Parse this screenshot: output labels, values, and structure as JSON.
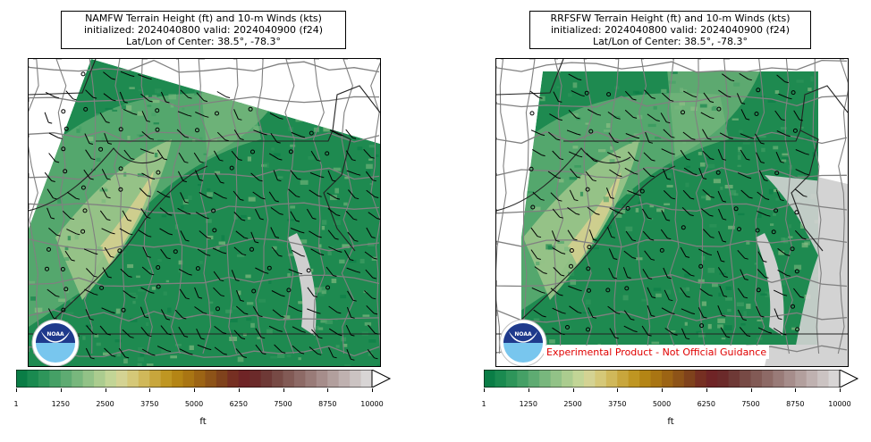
{
  "panels": [
    {
      "title_line1": "NAMFW Terrain Height (ft) and 10-m Winds (kts)",
      "title_line2": "initialized: 2024040800 valid: 2024040900 (f24)",
      "title_line3": "Lat/Lon of Center: 38.5°, -78.3°",
      "logo_text": "NOAA"
    },
    {
      "title_line1": "RRFSFW Terrain Height (ft) and 10-m Winds (kts)",
      "title_line2": "initialized: 2024040800 valid: 2024040900 (f24)",
      "title_line3": "Lat/Lon of Center: 38.5°, -78.3°",
      "logo_text": "NOAA"
    }
  ],
  "colorbar": {
    "ticks": [
      "1",
      "1250",
      "2500",
      "3750",
      "5000",
      "6250",
      "7500",
      "8750",
      "10000"
    ],
    "unit": "ft",
    "colors": [
      "#0a7d46",
      "#1a8a50",
      "#2e955a",
      "#45a066",
      "#5eab72",
      "#78b77d",
      "#92c287",
      "#abcc8f",
      "#c2d596",
      "#d4d393",
      "#d5c878",
      "#d0b85a",
      "#c8a63c",
      "#bf9622",
      "#b48515",
      "#a97513",
      "#9c6414",
      "#8d5318",
      "#7f421c",
      "#762f22",
      "#6f2426",
      "#6b2a2a",
      "#6e3936",
      "#774a45",
      "#825a55",
      "#8d6a66",
      "#997b78",
      "#a68d8b",
      "#b29f9d",
      "#bfb1b0",
      "#cbc3c2",
      "#d8d5d5"
    ]
  },
  "disclaimer": "Experimental Product - Not Official Guidance"
}
